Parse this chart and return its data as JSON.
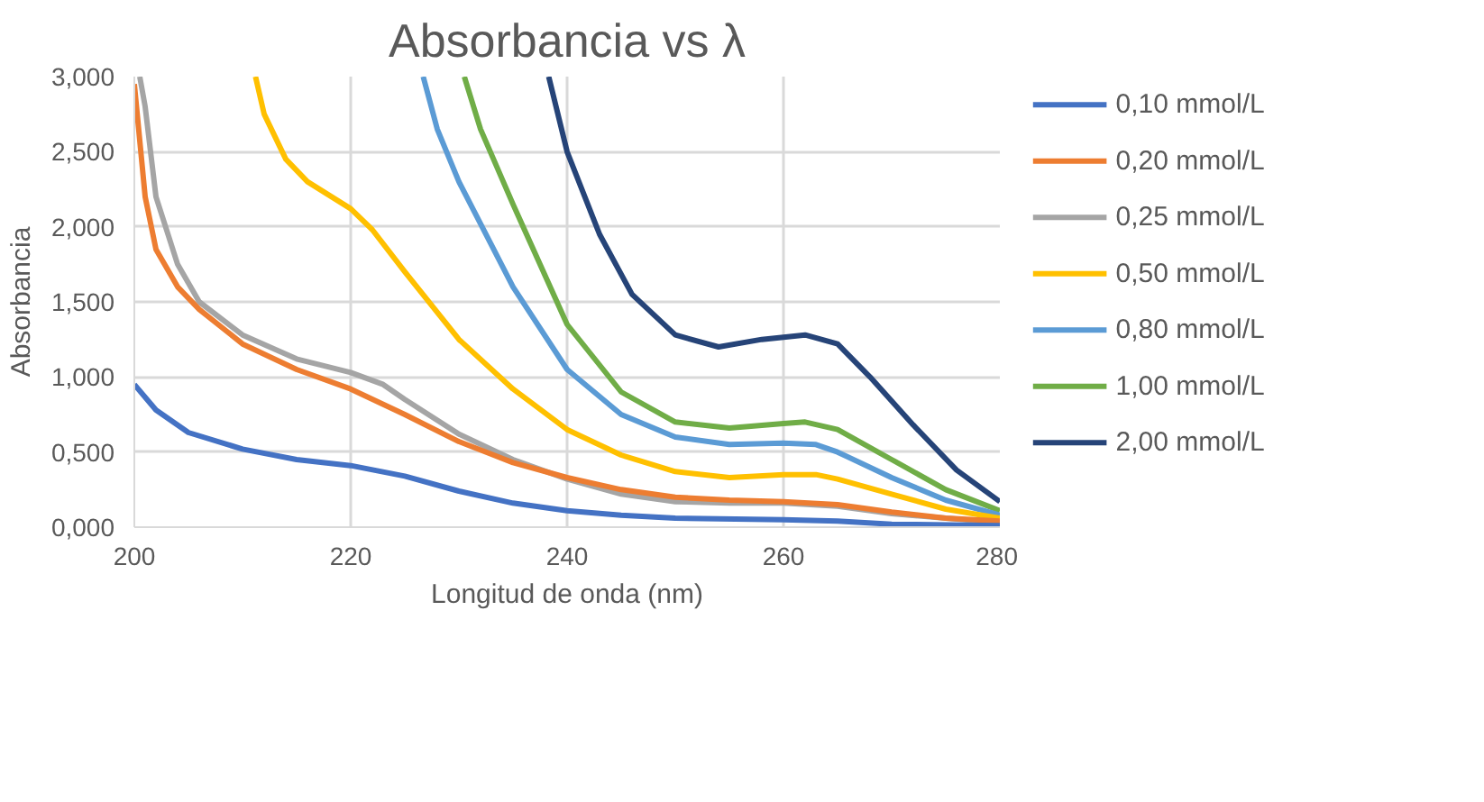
{
  "chart_data": {
    "type": "line",
    "title": "Absorbancia vs λ",
    "xlabel": "Longitud de onda (nm)",
    "ylabel": "Absorbancia",
    "xlim": [
      200,
      280
    ],
    "xticks": [
      200,
      220,
      240,
      260,
      280
    ],
    "ylim": [
      0,
      3
    ],
    "yticks": [
      {
        "value": 0,
        "label": "0,000"
      },
      {
        "value": 0.5,
        "label": "0,500"
      },
      {
        "value": 1,
        "label": "1,000"
      },
      {
        "value": 1.5,
        "label": "1,500"
      },
      {
        "value": 2,
        "label": "2,000"
      },
      {
        "value": 2.5,
        "label": "2,500"
      },
      {
        "value": 3,
        "label": "3,000"
      }
    ],
    "grid": true,
    "legend": "right",
    "marker": "none",
    "line_style": "solid",
    "series": [
      {
        "name": "0,10 mmol/L",
        "color": "#4472c4",
        "x": [
          200,
          202,
          205,
          210,
          215,
          220,
          225,
          230,
          235,
          240,
          245,
          250,
          260,
          265,
          270,
          280
        ],
        "values": [
          0.95,
          0.78,
          0.63,
          0.52,
          0.45,
          0.41,
          0.34,
          0.24,
          0.16,
          0.11,
          0.08,
          0.06,
          0.05,
          0.04,
          0.02,
          0.01
        ]
      },
      {
        "name": "0,20 mmol/L",
        "color": "#ed7d31",
        "x": [
          200,
          201,
          202,
          204,
          206,
          210,
          215,
          220,
          225,
          230,
          235,
          240,
          245,
          250,
          255,
          260,
          265,
          270,
          275,
          280
        ],
        "values": [
          2.95,
          2.2,
          1.85,
          1.6,
          1.45,
          1.22,
          1.05,
          0.92,
          0.75,
          0.57,
          0.43,
          0.33,
          0.25,
          0.2,
          0.18,
          0.17,
          0.15,
          0.1,
          0.06,
          0.04
        ]
      },
      {
        "name": "0,25 mmol/L",
        "color": "#a5a5a5",
        "x": [
          200.5,
          201,
          202,
          204,
          206,
          210,
          215,
          220,
          223,
          225,
          230,
          235,
          240,
          245,
          250,
          255,
          260,
          265,
          270,
          280
        ],
        "values": [
          3.0,
          2.8,
          2.2,
          1.75,
          1.5,
          1.28,
          1.12,
          1.03,
          0.95,
          0.85,
          0.62,
          0.45,
          0.32,
          0.22,
          0.17,
          0.16,
          0.16,
          0.14,
          0.09,
          0.03
        ]
      },
      {
        "name": "0,50 mmol/L",
        "color": "#ffc000",
        "x": [
          211.2,
          212,
          213,
          214,
          216,
          220,
          222,
          225,
          230,
          235,
          240,
          245,
          250,
          255,
          260,
          263,
          265,
          270,
          275,
          280
        ],
        "values": [
          3.0,
          2.75,
          2.6,
          2.45,
          2.3,
          2.12,
          1.98,
          1.7,
          1.25,
          0.92,
          0.65,
          0.48,
          0.37,
          0.33,
          0.35,
          0.35,
          0.32,
          0.22,
          0.12,
          0.06
        ]
      },
      {
        "name": "0,80 mmol/L",
        "color": "#5b9bd5",
        "x": [
          226.7,
          228,
          230,
          235,
          240,
          245,
          250,
          255,
          260,
          263,
          265,
          270,
          275,
          280
        ],
        "values": [
          3.0,
          2.65,
          2.3,
          1.6,
          1.05,
          0.75,
          0.6,
          0.55,
          0.56,
          0.55,
          0.5,
          0.33,
          0.18,
          0.08
        ]
      },
      {
        "name": "1,00 mmol/L",
        "color": "#70ad47",
        "x": [
          230.5,
          232,
          235,
          240,
          245,
          250,
          255,
          260,
          262,
          265,
          270,
          275,
          280
        ],
        "values": [
          3.0,
          2.65,
          2.15,
          1.35,
          0.9,
          0.7,
          0.66,
          0.69,
          0.7,
          0.65,
          0.45,
          0.25,
          0.11
        ]
      },
      {
        "name": "2,00 mmol/L",
        "color": "#264478",
        "x": [
          238.3,
          240,
          243,
          246,
          250,
          254,
          258,
          262,
          265,
          268,
          272,
          276,
          280
        ],
        "values": [
          3.0,
          2.5,
          1.95,
          1.55,
          1.28,
          1.2,
          1.25,
          1.28,
          1.22,
          1.0,
          0.68,
          0.38,
          0.17
        ]
      }
    ]
  }
}
